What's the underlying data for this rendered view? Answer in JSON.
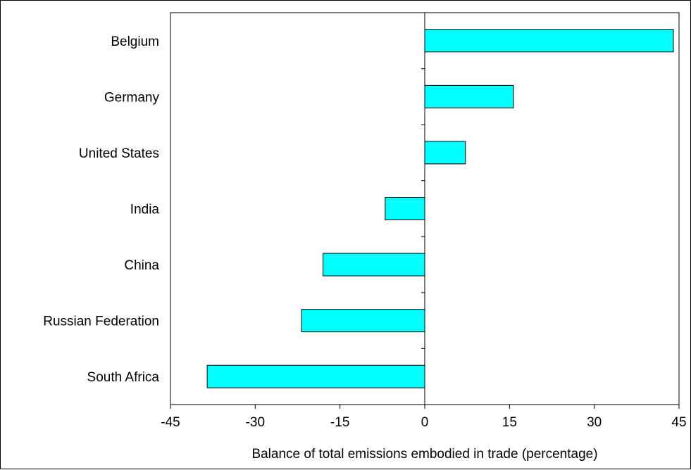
{
  "chart_data": {
    "type": "bar",
    "orientation": "horizontal",
    "categories": [
      "Belgium",
      "Germany",
      "United States",
      "India",
      "China",
      "Russian Federation",
      "South Africa"
    ],
    "values": [
      44,
      15.7,
      7.2,
      -7,
      -18,
      -21.8,
      -38.5
    ],
    "title": "",
    "xlabel": "Balance of total emissions embodied in trade (percentage)",
    "ylabel": "",
    "xlim": [
      -45,
      45
    ],
    "xticks": [
      -45,
      -30,
      -15,
      0,
      15,
      30,
      45
    ],
    "xtick_labels": [
      "-45",
      "-30",
      "-15",
      "0",
      "15",
      "30",
      "45"
    ],
    "grid": false,
    "legend": "none",
    "colors": {
      "bar_fill": "#00FFFF",
      "bar_stroke": "#000000",
      "axis": "#000000",
      "background": "#FFFFFF"
    }
  }
}
